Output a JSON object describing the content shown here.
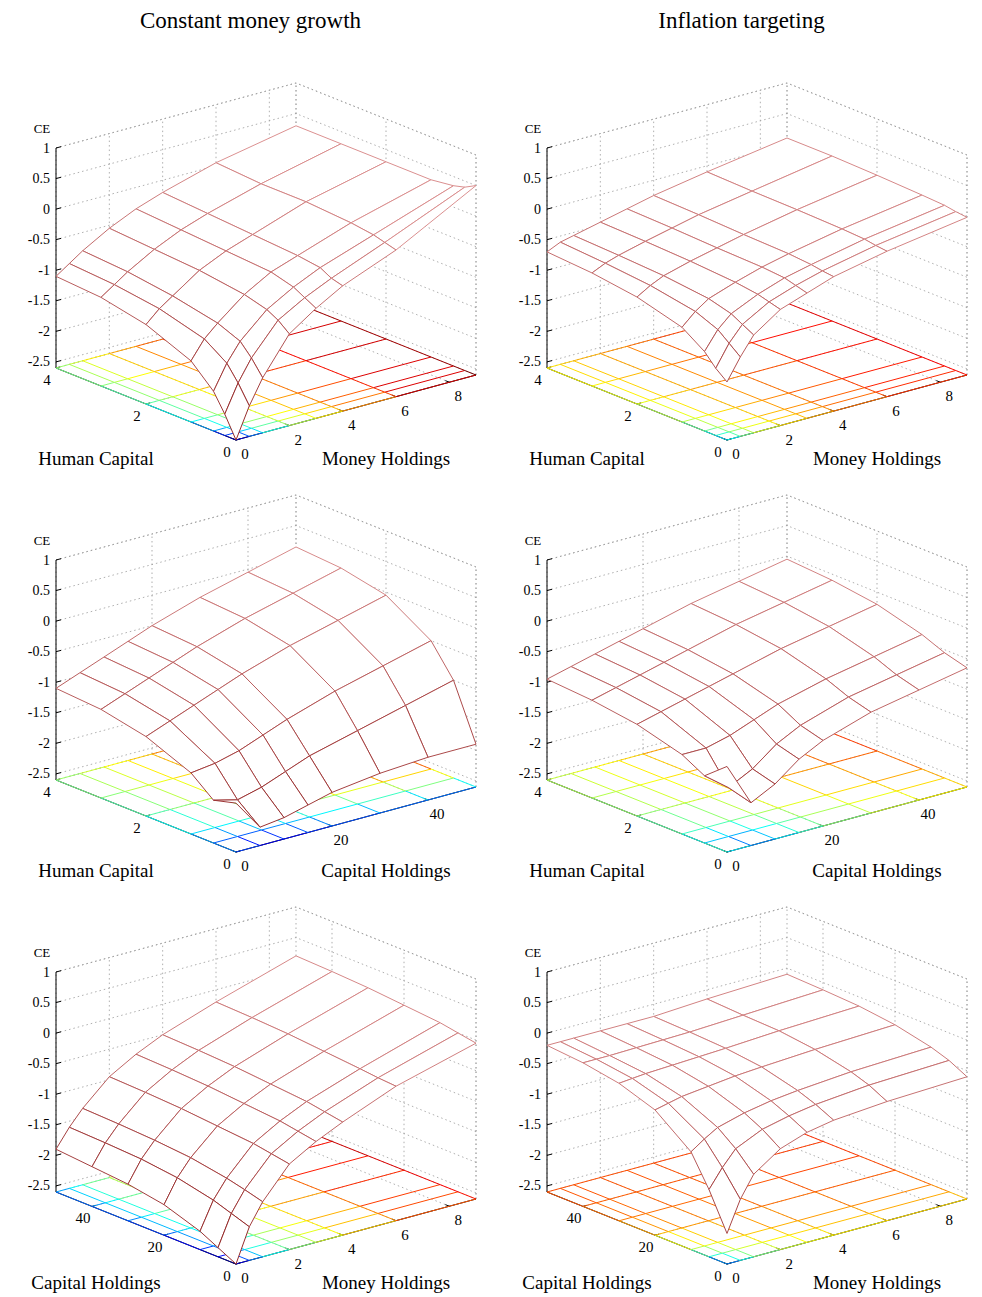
{
  "chart_data": [
    {
      "type": "surface3d",
      "title": "Constant money growth",
      "x_label": "Human Capital",
      "y_label": "Money Holdings",
      "z_label": "CE",
      "x": [
        0,
        0.25,
        0.5,
        1,
        2,
        3,
        4
      ],
      "y": [
        0,
        0.5,
        1,
        2,
        3,
        4,
        6,
        9
      ],
      "z": [
        [
          -2.6,
          -2.1,
          -1.7,
          -1.1,
          -0.8,
          -0.55,
          -0.2,
          0.5
        ],
        [
          -2.25,
          -1.8,
          -1.45,
          -0.95,
          -0.7,
          -0.5,
          -0.15,
          0.4
        ],
        [
          -1.95,
          -1.55,
          -1.25,
          -0.85,
          -0.6,
          -0.4,
          -0.1,
          0.35
        ],
        [
          -1.6,
          -1.3,
          -1.1,
          -0.75,
          -0.5,
          -0.35,
          -0.05,
          0.3
        ],
        [
          -1.3,
          -1.1,
          -0.95,
          -0.65,
          -0.45,
          -0.3,
          0,
          0.3
        ],
        [
          -1.15,
          -1.0,
          -0.85,
          -0.6,
          -0.4,
          -0.25,
          0,
          0.3
        ],
        [
          -1.1,
          -0.95,
          -0.8,
          -0.55,
          -0.35,
          -0.2,
          0.05,
          0.3
        ]
      ],
      "xlim": [
        0,
        4
      ],
      "xticks": [
        0,
        2,
        4
      ],
      "ylim": [
        0,
        9
      ],
      "yticks": [
        0,
        2,
        4,
        6,
        8
      ],
      "zlim": [
        -2.6,
        1
      ],
      "zticks": [
        -2.5,
        -2,
        -1.5,
        -1,
        -0.5,
        0,
        0.5,
        1
      ],
      "grid": true
    },
    {
      "type": "surface3d",
      "title": "Inflation targeting",
      "x_label": "Human Capital",
      "y_label": "Money Holdings",
      "z_label": "CE",
      "x": [
        0,
        0.25,
        0.5,
        1,
        2,
        3,
        4
      ],
      "y": [
        0,
        0.5,
        1,
        2,
        3,
        4,
        6,
        9
      ],
      "z": [
        [
          -1.65,
          -1.3,
          -1.0,
          -0.7,
          -0.55,
          -0.4,
          -0.22,
          -0.02
        ],
        [
          -1.5,
          -1.15,
          -0.9,
          -0.65,
          -0.5,
          -0.38,
          -0.2,
          0
        ],
        [
          -1.3,
          -1.0,
          -0.8,
          -0.6,
          -0.45,
          -0.35,
          -0.17,
          0.03
        ],
        [
          -1.05,
          -0.85,
          -0.7,
          -0.55,
          -0.42,
          -0.32,
          -0.15,
          0.05
        ],
        [
          -0.85,
          -0.72,
          -0.62,
          -0.5,
          -0.4,
          -0.3,
          -0.13,
          0.08
        ],
        [
          -0.75,
          -0.65,
          -0.58,
          -0.47,
          -0.37,
          -0.27,
          -0.12,
          0.1
        ],
        [
          -0.7,
          -0.6,
          -0.55,
          -0.45,
          -0.35,
          -0.25,
          -0.1,
          0.1
        ]
      ],
      "xlim": [
        0,
        4
      ],
      "xticks": [
        0,
        2,
        4
      ],
      "ylim": [
        0,
        9
      ],
      "yticks": [
        0,
        2,
        4,
        6,
        8
      ],
      "zlim": [
        -2.6,
        1
      ],
      "zticks": [
        -2.5,
        -2,
        -1.5,
        -1,
        -0.5,
        0,
        0.5,
        1
      ],
      "grid": true
    },
    {
      "type": "surface3d",
      "x_label": "Human Capital",
      "y_label": "Capital Holdings",
      "z_label": "CE",
      "x": [
        0,
        0.5,
        1,
        2,
        3,
        4
      ],
      "y": [
        0,
        5,
        10,
        15,
        20,
        30,
        40,
        50
      ],
      "z": [
        [
          -1.8,
          -2.3,
          -2.25,
          -2.15,
          -2.05,
          -1.95,
          -1.9,
          -1.9
        ],
        [
          -1.9,
          -2.0,
          -1.9,
          -1.75,
          -1.6,
          -1.4,
          -1.2,
          -1.0
        ],
        [
          -1.6,
          -1.55,
          -1.45,
          -1.3,
          -1.15,
          -0.9,
          -0.7,
          -0.5
        ],
        [
          -1.3,
          -1.15,
          -1.0,
          -0.85,
          -0.7,
          -0.45,
          -0.25,
          -0.05
        ],
        [
          -1.15,
          -1.0,
          -0.85,
          -0.7,
          -0.55,
          -0.3,
          -0.1,
          0.1
        ],
        [
          -1.1,
          -0.95,
          -0.8,
          -0.65,
          -0.5,
          -0.25,
          -0.05,
          0.15
        ]
      ],
      "xlim": [
        0,
        4
      ],
      "xticks": [
        0,
        2,
        4
      ],
      "ylim": [
        0,
        50
      ],
      "yticks": [
        0,
        20,
        40
      ],
      "zlim": [
        -2.6,
        1
      ],
      "zticks": [
        -2.5,
        -2,
        -1.5,
        -1,
        -0.5,
        0,
        0.5,
        1
      ],
      "grid": true
    },
    {
      "type": "surface3d",
      "x_label": "Human Capital",
      "y_label": "Capital Holdings",
      "z_label": "CE",
      "x": [
        0,
        0.5,
        1,
        2,
        3,
        4
      ],
      "y": [
        0,
        5,
        10,
        15,
        20,
        30,
        40,
        50
      ],
      "z": [
        [
          -1.2,
          -1.9,
          -1.7,
          -1.4,
          -1.2,
          -0.95,
          -0.8,
          -0.65
        ],
        [
          -1.5,
          -1.8,
          -1.6,
          -1.3,
          -1.1,
          -0.85,
          -0.7,
          -0.55
        ],
        [
          -1.3,
          -1.3,
          -1.2,
          -1.05,
          -0.9,
          -0.7,
          -0.55,
          -0.4
        ],
        [
          -1.1,
          -1.0,
          -0.9,
          -0.8,
          -0.7,
          -0.5,
          -0.35,
          -0.2
        ],
        [
          -1.0,
          -0.9,
          -0.8,
          -0.7,
          -0.6,
          -0.4,
          -0.25,
          -0.1
        ],
        [
          -0.95,
          -0.85,
          -0.75,
          -0.65,
          -0.55,
          -0.35,
          -0.2,
          -0.05
        ]
      ],
      "xlim": [
        0,
        4
      ],
      "xticks": [
        0,
        2,
        4
      ],
      "ylim": [
        0,
        50
      ],
      "yticks": [
        0,
        20,
        40
      ],
      "zlim": [
        -2.6,
        1
      ],
      "zticks": [
        -2.5,
        -2,
        -1.5,
        -1,
        -0.5,
        0,
        0.5,
        1
      ],
      "grid": true
    },
    {
      "type": "surface3d",
      "x_label": "Capital Holdings",
      "y_label": "Money Holdings",
      "z_label": "CE",
      "x": [
        0,
        5,
        10,
        20,
        30,
        40,
        50
      ],
      "y": [
        0,
        0.5,
        1,
        2,
        3,
        4,
        6,
        9
      ],
      "z": [
        [
          -2.6,
          -2.05,
          -1.7,
          -1.2,
          -0.95,
          -0.75,
          -0.4,
          -0.05
        ],
        [
          -2.45,
          -1.95,
          -1.62,
          -1.15,
          -0.9,
          -0.7,
          -0.38,
          0
        ],
        [
          -2.3,
          -1.85,
          -1.55,
          -1.1,
          -0.85,
          -0.65,
          -0.35,
          0.05
        ],
        [
          -2.1,
          -1.72,
          -1.45,
          -1.05,
          -0.8,
          -0.6,
          -0.3,
          0.1
        ],
        [
          -2.0,
          -1.65,
          -1.4,
          -1.0,
          -0.75,
          -0.55,
          -0.25,
          0.15
        ],
        [
          -1.95,
          -1.62,
          -1.37,
          -0.97,
          -0.72,
          -0.52,
          -0.22,
          0.18
        ],
        [
          -1.9,
          -1.6,
          -1.35,
          -0.95,
          -0.7,
          -0.5,
          -0.2,
          0.2
        ]
      ],
      "xlim": [
        0,
        50
      ],
      "xticks": [
        0,
        20,
        40
      ],
      "ylim": [
        0,
        9
      ],
      "yticks": [
        0,
        2,
        4,
        6,
        8
      ],
      "zlim": [
        -2.6,
        1
      ],
      "zticks": [
        -2.5,
        -2,
        -1.5,
        -1,
        -0.5,
        0,
        0.5,
        1
      ],
      "grid": true
    },
    {
      "type": "surface3d",
      "x_label": "Capital Holdings",
      "y_label": "Money Holdings",
      "z_label": "CE",
      "x": [
        0,
        5,
        10,
        20,
        30,
        40,
        50
      ],
      "y": [
        0,
        0.5,
        1,
        2,
        3,
        4,
        6,
        9
      ],
      "z": [
        [
          -2.1,
          -1.6,
          -1.25,
          -0.95,
          -0.8,
          -0.72,
          -0.65,
          -0.6
        ],
        [
          -1.5,
          -1.2,
          -0.95,
          -0.75,
          -0.65,
          -0.58,
          -0.5,
          -0.45
        ],
        [
          -1.0,
          -0.85,
          -0.72,
          -0.6,
          -0.52,
          -0.47,
          -0.4,
          -0.35
        ],
        [
          -0.55,
          -0.5,
          -0.45,
          -0.4,
          -0.35,
          -0.32,
          -0.27,
          -0.22
        ],
        [
          -0.35,
          -0.33,
          -0.31,
          -0.29,
          -0.27,
          -0.25,
          -0.2,
          -0.15
        ],
        [
          -0.25,
          -0.25,
          -0.25,
          -0.24,
          -0.23,
          -0.22,
          -0.18,
          -0.12
        ],
        [
          -0.2,
          -0.2,
          -0.2,
          -0.2,
          -0.2,
          -0.2,
          -0.15,
          -0.1
        ]
      ],
      "xlim": [
        0,
        50
      ],
      "xticks": [
        0,
        20,
        40
      ],
      "ylim": [
        0,
        9
      ],
      "yticks": [
        0,
        2,
        4,
        6,
        8
      ],
      "zlim": [
        -2.6,
        1
      ],
      "zticks": [
        -2.5,
        -2,
        -1.5,
        -1,
        -0.5,
        0,
        0.5,
        1
      ],
      "grid": true
    }
  ]
}
